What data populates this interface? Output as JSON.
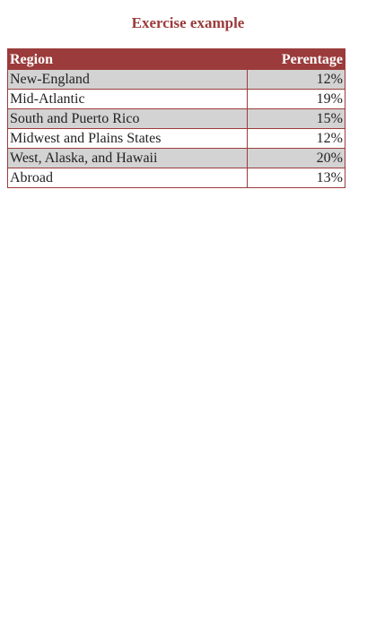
{
  "page": {
    "title": "Exercise example"
  },
  "table": {
    "headers": {
      "region": "Region",
      "percentage": "Perentage"
    },
    "rows": [
      {
        "region": "New-England",
        "percentage": "12%"
      },
      {
        "region": "Mid-Atlantic",
        "percentage": "19%"
      },
      {
        "region": "South and Puerto Rico",
        "percentage": "15%"
      },
      {
        "region": "Midwest and Plains States",
        "percentage": "12%"
      },
      {
        "region": "West, Alaska, and Hawaii",
        "percentage": "20%"
      },
      {
        "region": "Abroad",
        "percentage": "13%"
      }
    ]
  },
  "colors": {
    "accent": "#9b3b3b",
    "stripe": "#d3d3d3",
    "text": "#222222"
  }
}
